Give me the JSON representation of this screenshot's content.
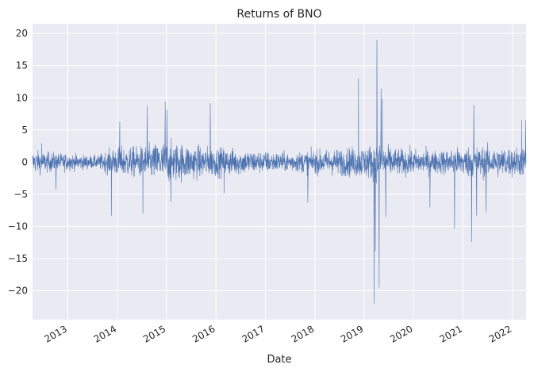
{
  "chart_data": {
    "type": "line",
    "title": "Returns of BNO",
    "xlabel": "Date",
    "ylabel": "",
    "x_range": [
      "2012-04-15",
      "2022-04-12"
    ],
    "ylim": [
      -24.5,
      21.5
    ],
    "y_ticks": [
      -20,
      -15,
      -10,
      -5,
      0,
      5,
      10,
      15,
      20
    ],
    "x_ticks": [
      "2013",
      "2014",
      "2015",
      "2016",
      "2017",
      "2018",
      "2019",
      "2020",
      "2021",
      "2022"
    ],
    "grid": true,
    "series_color": "#4c72b0",
    "background": "#eaeaf2",
    "spikes": [
      {
        "x": "2012-06-21",
        "y": 2.9
      },
      {
        "x": "2012-10-05",
        "y": -4.3
      },
      {
        "x": "2013-11-20",
        "y": -8.3
      },
      {
        "x": "2014-01-20",
        "y": 6.2
      },
      {
        "x": "2014-07-10",
        "y": -8.0
      },
      {
        "x": "2014-08-10",
        "y": 8.7
      },
      {
        "x": "2014-12-20",
        "y": 9.4
      },
      {
        "x": "2015-01-05",
        "y": 8.1
      },
      {
        "x": "2015-02-01",
        "y": -6.2
      },
      {
        "x": "2015-11-20",
        "y": 9.1
      },
      {
        "x": "2016-03-01",
        "y": -4.8
      },
      {
        "x": "2017-11-10",
        "y": -6.3
      },
      {
        "x": "2018-11-20",
        "y": 13.0
      },
      {
        "x": "2019-03-15",
        "y": -22.0
      },
      {
        "x": "2019-03-25",
        "y": -13.8
      },
      {
        "x": "2019-04-05",
        "y": 19.0
      },
      {
        "x": "2019-04-20",
        "y": -19.5
      },
      {
        "x": "2019-05-05",
        "y": 11.4
      },
      {
        "x": "2019-05-15",
        "y": 9.8
      },
      {
        "x": "2019-06-10",
        "y": -8.5
      },
      {
        "x": "2020-05-01",
        "y": -7.0
      },
      {
        "x": "2020-10-30",
        "y": -10.4
      },
      {
        "x": "2021-03-05",
        "y": -12.4
      },
      {
        "x": "2021-03-20",
        "y": 8.9
      },
      {
        "x": "2021-04-10",
        "y": -8.3
      },
      {
        "x": "2021-06-20",
        "y": -7.8
      },
      {
        "x": "2022-03-10",
        "y": 6.5
      },
      {
        "x": "2022-04-08",
        "y": 6.5
      }
    ],
    "volatility_envelope": [
      {
        "x": "2012-04-15",
        "amp": 2.2
      },
      {
        "x": "2013-01-15",
        "amp": 1.6
      },
      {
        "x": "2013-08-01",
        "amp": 1.2
      },
      {
        "x": "2013-12-15",
        "amp": 2.8
      },
      {
        "x": "2014-07-01",
        "amp": 3.0
      },
      {
        "x": "2015-01-01",
        "amp": 4.0
      },
      {
        "x": "2015-10-01",
        "amp": 3.0
      },
      {
        "x": "2016-06-01",
        "amp": 2.5
      },
      {
        "x": "2017-06-01",
        "amp": 1.8
      },
      {
        "x": "2018-06-01",
        "amp": 2.5
      },
      {
        "x": "2018-12-01",
        "amp": 3.0
      },
      {
        "x": "2019-04-01",
        "amp": 3.5
      },
      {
        "x": "2019-09-01",
        "amp": 2.6
      },
      {
        "x": "2020-06-01",
        "amp": 2.2
      },
      {
        "x": "2021-03-01",
        "amp": 3.0
      },
      {
        "x": "2022-04-12",
        "amp": 2.8
      }
    ]
  }
}
